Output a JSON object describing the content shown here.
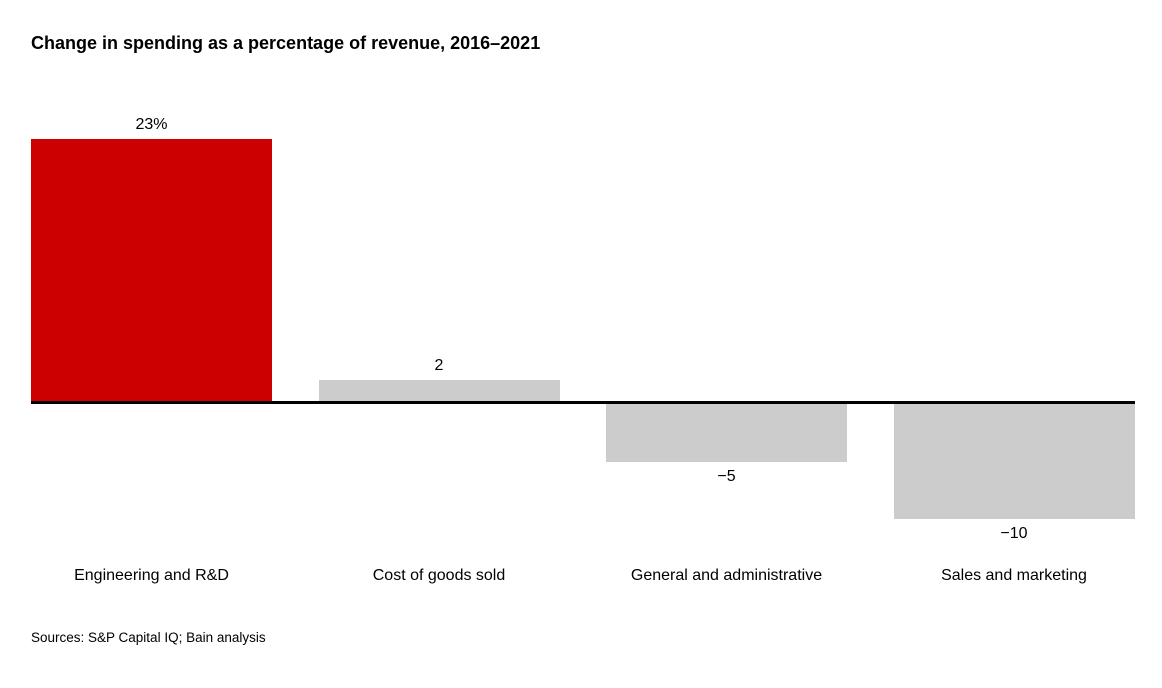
{
  "chart_data": {
    "type": "bar",
    "title": "Change in spending as a percentage of revenue, 2016–2021",
    "categories": [
      "Engineering and R&D",
      "Cost of goods sold",
      "General and administrative",
      "Sales and marketing"
    ],
    "values": [
      23,
      2,
      -5,
      -10
    ],
    "value_labels": [
      "23%",
      "2",
      "−5",
      "−10"
    ],
    "bar_colors": [
      "#cc0000",
      "#cccccc",
      "#cccccc",
      "#cccccc"
    ],
    "xlabel": "",
    "ylabel": "",
    "ylim": [
      -10,
      23
    ],
    "baseline": 0,
    "grid": false,
    "legend": "none",
    "value_label_position": "outside-end",
    "highlighted_category": "Engineering and R&D"
  },
  "colors": {
    "highlight_red": "#cc0000",
    "bar_gray": "#cccccc",
    "axis_black": "#000000",
    "text_black": "#000000",
    "background": "#ffffff"
  },
  "source_note": "Sources: S&P Capital IQ; Bain analysis"
}
